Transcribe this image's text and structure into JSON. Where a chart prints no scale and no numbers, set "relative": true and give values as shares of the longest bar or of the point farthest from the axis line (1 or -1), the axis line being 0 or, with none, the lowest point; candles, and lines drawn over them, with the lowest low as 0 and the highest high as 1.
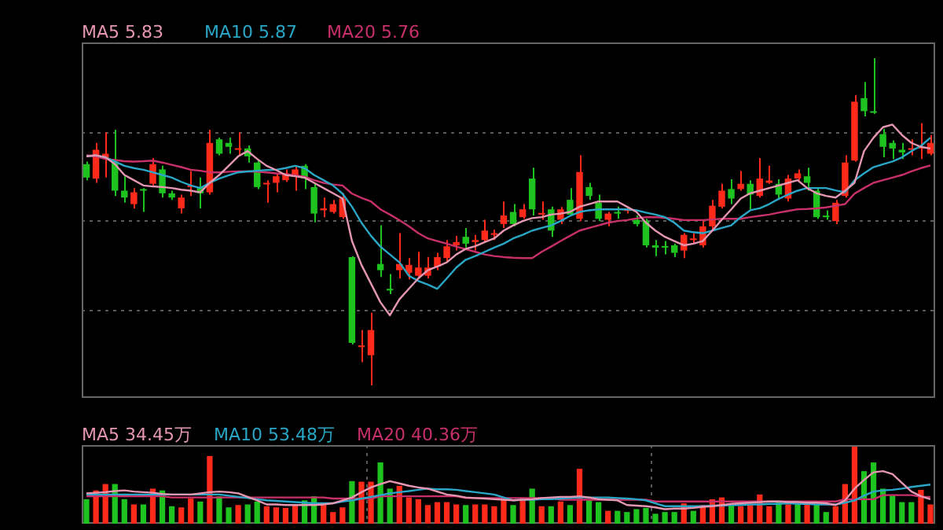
{
  "chart_data": [
    {
      "type": "candlestick",
      "relative": true,
      "grid": "y",
      "legend": "top left",
      "categories": [
        null,
        null,
        null,
        null,
        null,
        null,
        null,
        null,
        null,
        null,
        null,
        null,
        null,
        null,
        null,
        null,
        null,
        null,
        null,
        null,
        null,
        null,
        null,
        null,
        null,
        null,
        null,
        null,
        null,
        null,
        null,
        null,
        null,
        null,
        null,
        null,
        null,
        null,
        null,
        null,
        null,
        null,
        null,
        null,
        null,
        null,
        null,
        null,
        null,
        null,
        null,
        null,
        null,
        null,
        null,
        null,
        null,
        null,
        null,
        null,
        null,
        null,
        null,
        null,
        null,
        null,
        null,
        null,
        null,
        null,
        null,
        null,
        null,
        null,
        null,
        null,
        null,
        null,
        null,
        null,
        null,
        null,
        null,
        null,
        null,
        null,
        null,
        null,
        null,
        null
      ],
      "ohlc": [
        [
          0.676,
          0.684,
          0.627,
          0.635
        ],
        [
          0.632,
          0.741,
          0.619,
          0.72
        ],
        [
          0.692,
          0.773,
          0.635,
          0.708
        ],
        [
          0.684,
          0.781,
          0.579,
          0.595
        ],
        [
          0.595,
          0.639,
          0.558,
          0.574
        ],
        [
          0.554,
          0.603,
          0.541,
          0.59
        ],
        [
          0.598,
          0.603,
          0.53,
          0.595
        ],
        [
          0.616,
          0.695,
          0.611,
          0.676
        ],
        [
          0.66,
          0.671,
          0.574,
          0.587
        ],
        [
          0.587,
          0.595,
          0.567,
          0.574
        ],
        [
          0.541,
          0.583,
          0.525,
          0.574
        ],
        [
          0.606,
          0.655,
          0.579,
          0.611
        ],
        [
          0.606,
          0.635,
          0.541,
          0.587
        ],
        [
          0.59,
          0.781,
          0.583,
          0.741
        ],
        [
          0.752,
          0.757,
          0.703,
          0.708
        ],
        [
          0.741,
          0.757,
          0.708,
          0.729
        ],
        [
          0.72,
          0.773,
          0.7,
          0.724
        ],
        [
          0.724,
          0.733,
          0.681,
          0.7
        ],
        [
          0.681,
          0.687,
          0.6,
          0.606
        ],
        [
          0.614,
          0.627,
          0.558,
          0.619
        ],
        [
          0.619,
          0.648,
          0.59,
          0.639
        ],
        [
          0.627,
          0.66,
          0.622,
          0.648
        ],
        [
          0.639,
          0.671,
          0.595,
          0.66
        ],
        [
          0.671,
          0.676,
          0.6,
          0.632
        ],
        [
          0.606,
          0.616,
          0.498,
          0.525
        ],
        [
          0.535,
          0.574,
          0.514,
          0.541
        ],
        [
          0.53,
          0.567,
          0.525,
          0.554
        ],
        [
          0.514,
          0.587,
          0.509,
          0.571
        ],
        [
          0.392,
          0.395,
          0.125,
          0.13
        ],
        [
          0.117,
          0.169,
          0.071,
          0.122
        ],
        [
          0.092,
          0.222,
          0,
          0.169
        ],
        [
          0.371,
          0.489,
          0.331,
          0.352
        ],
        [
          0.295,
          0.34,
          0.279,
          0.29
        ],
        [
          0.352,
          0.465,
          0.327,
          0.371
        ],
        [
          0.344,
          0.389,
          0.324,
          0.368
        ],
        [
          0.335,
          0.408,
          0.331,
          0.36
        ],
        [
          0.335,
          0.392,
          0.327,
          0.36
        ],
        [
          0.363,
          0.405,
          0.352,
          0.392
        ],
        [
          0.389,
          0.444,
          0.379,
          0.425
        ],
        [
          0.428,
          0.457,
          0.412,
          0.438
        ],
        [
          0.454,
          0.481,
          0.421,
          0.433
        ],
        [
          0.438,
          0.46,
          0.412,
          0.444
        ],
        [
          0.444,
          0.506,
          0.438,
          0.473
        ],
        [
          0.46,
          0.476,
          0.444,
          0.465
        ],
        [
          0.493,
          0.562,
          0.481,
          0.519
        ],
        [
          0.53,
          0.554,
          0.486,
          0.493
        ],
        [
          0.514,
          0.554,
          0.509,
          0.538
        ],
        [
          0.632,
          0.665,
          0.519,
          0.538
        ],
        [
          0.522,
          0.562,
          0.506,
          0.525
        ],
        [
          0.538,
          0.546,
          0.454,
          0.473
        ],
        [
          0.506,
          0.545,
          0.493,
          0.538
        ],
        [
          0.567,
          0.603,
          0.519,
          0.522
        ],
        [
          0.509,
          0.703,
          0.502,
          0.652
        ],
        [
          0.606,
          0.619,
          0.567,
          0.579
        ],
        [
          0.558,
          0.583,
          0.502,
          0.509
        ],
        [
          0.506,
          0.53,
          0.486,
          0.525
        ],
        [
          0.53,
          0.546,
          0.509,
          0.525
        ],
        [
          0.533,
          0.546,
          0.525,
          0.538
        ],
        [
          0.506,
          0.519,
          0.486,
          0.493
        ],
        [
          0.502,
          0.509,
          0.421,
          0.428
        ],
        [
          0.428,
          0.444,
          0.395,
          0.421
        ],
        [
          0.425,
          0.441,
          0.4,
          0.421
        ],
        [
          0.428,
          0.433,
          0.392,
          0.405
        ],
        [
          0.412,
          0.465,
          0.389,
          0.46
        ],
        [
          0.444,
          0.465,
          0.433,
          0.449
        ],
        [
          0.428,
          0.502,
          0.421,
          0.486
        ],
        [
          0.486,
          0.567,
          0.476,
          0.549
        ],
        [
          0.546,
          0.616,
          0.541,
          0.595
        ],
        [
          0.6,
          0.63,
          0.554,
          0.571
        ],
        [
          0.6,
          0.655,
          0.595,
          0.616
        ],
        [
          0.616,
          0.627,
          0.538,
          0.583
        ],
        [
          0.579,
          0.695,
          0.574,
          0.632
        ],
        [
          0.619,
          0.671,
          0.616,
          0.626
        ],
        [
          0.616,
          0.63,
          0.567,
          0.583
        ],
        [
          0.571,
          0.643,
          0.562,
          0.632
        ],
        [
          0.632,
          0.66,
          0.626,
          0.648
        ],
        [
          0.639,
          0.665,
          0.595,
          0.619
        ],
        [
          0.595,
          0.603,
          0.509,
          0.514
        ],
        [
          0.519,
          0.535,
          0.506,
          0.514
        ],
        [
          0.502,
          0.567,
          0.493,
          0.558
        ],
        [
          0.579,
          0.703,
          0.574,
          0.681
        ],
        [
          0.687,
          0.887,
          0.684,
          0.867
        ],
        [
          0.878,
          0.927,
          0.822,
          0.838
        ],
        [
          0.838,
          1,
          0.83,
          0.833
        ],
        [
          0.768,
          0.784,
          0.697,
          0.729
        ],
        [
          0.741,
          0.749,
          0.692,
          0.724
        ],
        [
          0.72,
          0.741,
          0.692,
          0.712
        ],
        [
          0.72,
          0.752,
          0.703,
          0.724
        ],
        [
          0.724,
          0.801,
          0.692,
          0.729
        ],
        [
          0.708,
          0.765,
          0.703,
          0.741
        ]
      ],
      "colors": [
        "#1fc31f",
        "#ff2a1a",
        "#ff2a1a",
        "#1fc31f",
        "#1fc31f",
        "#ff2a1a",
        "#1fc31f",
        "#ff2a1a",
        "#1fc31f",
        "#1fc31f",
        "#ff2a1a",
        "#ff2a1a",
        "#1fc31f",
        "#ff2a1a",
        "#1fc31f",
        "#1fc31f",
        "#ff2a1a",
        "#1fc31f",
        "#1fc31f",
        "#ff2a1a",
        "#ff2a1a",
        "#ff2a1a",
        "#ff2a1a",
        "#1fc31f",
        "#1fc31f",
        "#ff2a1a",
        "#ff2a1a",
        "#ff2a1a",
        "#1fc31f",
        "#ff2a1a",
        "#ff2a1a",
        "#1fc31f",
        "#1fc31f",
        "#ff2a1a",
        "#ff2a1a",
        "#ff2a1a",
        "#ff2a1a",
        "#ff2a1a",
        "#ff2a1a",
        "#ff2a1a",
        "#1fc31f",
        "#ff2a1a",
        "#ff2a1a",
        "#ff2a1a",
        "#ff2a1a",
        "#1fc31f",
        "#ff2a1a",
        "#1fc31f",
        "#ff2a1a",
        "#1fc31f",
        "#ff2a1a",
        "#1fc31f",
        "#ff2a1a",
        "#1fc31f",
        "#1fc31f",
        "#ff2a1a",
        "#1fc31f",
        "#ff2a1a",
        "#1fc31f",
        "#1fc31f",
        "#1fc31f",
        "#1fc31f",
        "#1fc31f",
        "#ff2a1a",
        "#ff2a1a",
        "#ff2a1a",
        "#ff2a1a",
        "#ff2a1a",
        "#1fc31f",
        "#ff2a1a",
        "#1fc31f",
        "#ff2a1a",
        "#ff2a1a",
        "#1fc31f",
        "#ff2a1a",
        "#ff2a1a",
        "#1fc31f",
        "#1fc31f",
        "#1fc31f",
        "#ff2a1a",
        "#ff2a1a",
        "#ff2a1a",
        "#1fc31f",
        "#1fc31f",
        "#1fc31f",
        "#1fc31f",
        "#1fc31f",
        "#ff2a1a",
        "#ff2a1a",
        "#ff2a1a"
      ],
      "series": [
        {
          "type": "line",
          "name": "MA5 5.83",
          "color": "#e597b2",
          "values": [
            0.7,
            0.703,
            0.697,
            0.676,
            0.643,
            0.627,
            0.611,
            0.608,
            0.606,
            0.603,
            0.598,
            0.595,
            0.59,
            0.619,
            0.643,
            0.671,
            0.7,
            0.716,
            0.692,
            0.671,
            0.658,
            0.643,
            0.639,
            0.635,
            0.619,
            0.603,
            0.587,
            0.571,
            0.441,
            0.368,
            0.311,
            0.254,
            0.214,
            0.263,
            0.295,
            0.327,
            0.352,
            0.363,
            0.376,
            0.4,
            0.417,
            0.425,
            0.438,
            0.449,
            0.473,
            0.489,
            0.502,
            0.511,
            0.514,
            0.522,
            0.525,
            0.53,
            0.546,
            0.554,
            0.562,
            0.562,
            0.562,
            0.546,
            0.53,
            0.497,
            0.473,
            0.454,
            0.441,
            0.428,
            0.433,
            0.441,
            0.473,
            0.506,
            0.538,
            0.571,
            0.587,
            0.595,
            0.603,
            0.611,
            0.619,
            0.627,
            0.603,
            0.587,
            0.579,
            0.574,
            0.595,
            0.619,
            0.716,
            0.757,
            0.789,
            0.797,
            0.765,
            0.741,
            0.729,
            0.724
          ]
        },
        {
          "type": "line",
          "name": "MA10 5.87",
          "color": "#2aa6c6",
          "values": [
            0.7,
            0.703,
            0.697,
            0.684,
            0.671,
            0.664,
            0.659,
            0.651,
            0.643,
            0.635,
            0.622,
            0.611,
            0.603,
            0.619,
            0.632,
            0.642,
            0.651,
            0.654,
            0.656,
            0.658,
            0.659,
            0.664,
            0.671,
            0.664,
            0.643,
            0.627,
            0.611,
            0.586,
            0.546,
            0.497,
            0.457,
            0.424,
            0.4,
            0.376,
            0.335,
            0.319,
            0.308,
            0.295,
            0.327,
            0.36,
            0.384,
            0.395,
            0.408,
            0.421,
            0.433,
            0.449,
            0.46,
            0.473,
            0.481,
            0.489,
            0.502,
            0.518,
            0.53,
            0.535,
            0.538,
            0.538,
            0.538,
            0.538,
            0.535,
            0.528,
            0.522,
            0.514,
            0.497,
            0.473,
            0.468,
            0.465,
            0.473,
            0.481,
            0.489,
            0.514,
            0.535,
            0.541,
            0.554,
            0.57,
            0.583,
            0.595,
            0.603,
            0.603,
            0.603,
            0.596,
            0.59,
            0.627,
            0.648,
            0.667,
            0.676,
            0.684,
            0.697,
            0.716,
            0.732,
            0.757
          ]
        },
        {
          "type": "line",
          "name": "MA20 5.76",
          "color": "#c8306a",
          "values": [
            0.703,
            0.7,
            0.692,
            0.689,
            0.685,
            0.684,
            0.685,
            0.687,
            0.681,
            0.674,
            0.667,
            0.659,
            0.656,
            0.651,
            0.651,
            0.653,
            0.654,
            0.654,
            0.653,
            0.651,
            0.648,
            0.645,
            0.642,
            0.638,
            0.627,
            0.619,
            0.614,
            0.611,
            0.586,
            0.573,
            0.562,
            0.538,
            0.522,
            0.505,
            0.486,
            0.465,
            0.449,
            0.441,
            0.433,
            0.424,
            0.416,
            0.408,
            0.4,
            0.395,
            0.392,
            0.39,
            0.389,
            0.389,
            0.408,
            0.424,
            0.441,
            0.457,
            0.473,
            0.481,
            0.489,
            0.497,
            0.502,
            0.505,
            0.51,
            0.514,
            0.514,
            0.512,
            0.509,
            0.505,
            0.505,
            0.505,
            0.507,
            0.509,
            0.509,
            0.509,
            0.514,
            0.518,
            0.522,
            0.528,
            0.533,
            0.538,
            0.539,
            0.541,
            0.544,
            0.549,
            0.554,
            0.586,
            0.603,
            0.619,
            0.627,
            0.635,
            0.643,
            0.654,
            0.664,
            0.672
          ]
        }
      ]
    },
    {
      "type": "bar",
      "relative": true,
      "grid": "x",
      "legend": "top left",
      "categories": [
        null,
        null,
        null,
        null,
        null,
        null,
        null,
        null,
        null,
        null,
        null,
        null,
        null,
        null,
        null,
        null,
        null,
        null,
        null,
        null,
        null,
        null,
        null,
        null,
        null,
        null,
        null,
        null,
        null,
        null,
        null,
        null,
        null,
        null,
        null,
        null,
        null,
        null,
        null,
        null,
        null,
        null,
        null,
        null,
        null,
        null,
        null,
        null,
        null,
        null,
        null,
        null,
        null,
        null,
        null,
        null,
        null,
        null,
        null,
        null,
        null,
        null,
        null,
        null,
        null,
        null,
        null,
        null,
        null,
        null,
        null,
        null,
        null,
        null,
        null,
        null,
        null,
        null,
        null,
        null,
        null,
        null,
        null,
        null,
        null,
        null,
        null,
        null,
        null,
        null
      ],
      "series": [
        {
          "values": [
            0.318,
            0.432,
            0.515,
            0.515,
            0.318,
            0.25,
            0.25,
            0.455,
            0.432,
            0.227,
            0.212,
            0.326,
            0.288,
            0.879,
            0.356,
            0.212,
            0.242,
            0.25,
            0.288,
            0.227,
            0.212,
            0.205,
            0.242,
            0.303,
            0.356,
            0.242,
            0.152,
            0.212,
            0.553,
            0.545,
            0.545,
            0.795,
            0.455,
            0.492,
            0.341,
            0.318,
            0.242,
            0.28,
            0.28,
            0.25,
            0.242,
            0.25,
            0.25,
            0.227,
            0.341,
            0.242,
            0.341,
            0.455,
            0.227,
            0.227,
            0.288,
            0.242,
            0.712,
            0.303,
            0.28,
            0.167,
            0.167,
            0.152,
            0.189,
            0.205,
            0.129,
            0.152,
            0.152,
            0.265,
            0.167,
            0.242,
            0.318,
            0.341,
            0.242,
            0.227,
            0.242,
            0.379,
            0.227,
            0.28,
            0.25,
            0.25,
            0.265,
            0.25,
            0.152,
            0.227,
            0.515,
            1,
            0.682,
            0.795,
            0.455,
            0.364,
            0.28,
            0.28,
            0.439,
            0.25
          ],
          "colors": [
            "#1fc31f",
            "#ff2a1a",
            "#ff2a1a",
            "#1fc31f",
            "#1fc31f",
            "#ff2a1a",
            "#1fc31f",
            "#ff2a1a",
            "#1fc31f",
            "#1fc31f",
            "#ff2a1a",
            "#ff2a1a",
            "#1fc31f",
            "#ff2a1a",
            "#1fc31f",
            "#1fc31f",
            "#ff2a1a",
            "#1fc31f",
            "#1fc31f",
            "#ff2a1a",
            "#ff2a1a",
            "#ff2a1a",
            "#ff2a1a",
            "#1fc31f",
            "#1fc31f",
            "#ff2a1a",
            "#ff2a1a",
            "#ff2a1a",
            "#1fc31f",
            "#ff2a1a",
            "#ff2a1a",
            "#1fc31f",
            "#1fc31f",
            "#ff2a1a",
            "#ff2a1a",
            "#ff2a1a",
            "#ff2a1a",
            "#ff2a1a",
            "#ff2a1a",
            "#ff2a1a",
            "#1fc31f",
            "#ff2a1a",
            "#ff2a1a",
            "#ff2a1a",
            "#ff2a1a",
            "#1fc31f",
            "#ff2a1a",
            "#1fc31f",
            "#ff2a1a",
            "#1fc31f",
            "#ff2a1a",
            "#1fc31f",
            "#ff2a1a",
            "#1fc31f",
            "#1fc31f",
            "#ff2a1a",
            "#1fc31f",
            "#1fc31f",
            "#1fc31f",
            "#1fc31f",
            "#1fc31f",
            "#1fc31f",
            "#1fc31f",
            "#ff2a1a",
            "#1fc31f",
            "#ff2a1a",
            "#ff2a1a",
            "#ff2a1a",
            "#1fc31f",
            "#ff2a1a",
            "#ff2a1a",
            "#ff2a1a",
            "#ff2a1a",
            "#1fc31f",
            "#ff2a1a",
            "#1fc31f",
            "#ff2a1a",
            "#1fc31f",
            "#1fc31f",
            "#ff2a1a",
            "#ff2a1a",
            "#ff2a1a",
            "#1fc31f",
            "#1fc31f",
            "#1fc31f",
            "#1fc31f",
            "#1fc31f",
            "#1fc31f",
            "#ff2a1a",
            "#ff2a1a"
          ]
        },
        {
          "type": "line",
          "name": "MA5 34.45万",
          "color": "#e597b2",
          "values": [
            0.394,
            0.402,
            0.409,
            0.424,
            0.432,
            0.417,
            0.409,
            0.402,
            0.386,
            0.379,
            0.379,
            0.379,
            0.394,
            0.409,
            0.417,
            0.409,
            0.394,
            0.348,
            0.303,
            0.25,
            0.25,
            0.242,
            0.242,
            0.242,
            0.242,
            0.25,
            0.265,
            0.303,
            0.341,
            0.409,
            0.47,
            0.515,
            0.553,
            0.523,
            0.492,
            0.47,
            0.455,
            0.417,
            0.379,
            0.364,
            0.341,
            0.333,
            0.326,
            0.318,
            0.311,
            0.303,
            0.311,
            0.318,
            0.333,
            0.341,
            0.348,
            0.348,
            0.356,
            0.341,
            0.318,
            0.311,
            0.303,
            0.242,
            0.235,
            0.227,
            0.212,
            0.189,
            0.197,
            0.197,
            0.205,
            0.22,
            0.227,
            0.242,
            0.258,
            0.265,
            0.273,
            0.28,
            0.288,
            0.288,
            0.28,
            0.28,
            0.273,
            0.273,
            0.265,
            0.242,
            0.303,
            0.455,
            0.568,
            0.667,
            0.682,
            0.644,
            0.53,
            0.417,
            0.356,
            0.318
          ]
        },
        {
          "type": "line",
          "name": "MA10 53.48万",
          "color": "#2aa6c6",
          "values": [
            0.379,
            0.379,
            0.379,
            0.379,
            0.379,
            0.379,
            0.379,
            0.379,
            0.379,
            0.379,
            0.379,
            0.379,
            0.379,
            0.379,
            0.379,
            0.364,
            0.348,
            0.333,
            0.318,
            0.303,
            0.296,
            0.288,
            0.28,
            0.273,
            0.265,
            0.265,
            0.265,
            0.288,
            0.303,
            0.326,
            0.348,
            0.371,
            0.394,
            0.409,
            0.424,
            0.44,
            0.455,
            0.447,
            0.447,
            0.44,
            0.424,
            0.409,
            0.394,
            0.379,
            0.341,
            0.303,
            0.311,
            0.311,
            0.318,
            0.318,
            0.326,
            0.333,
            0.341,
            0.341,
            0.341,
            0.341,
            0.333,
            0.326,
            0.318,
            0.303,
            0.265,
            0.227,
            0.227,
            0.227,
            0.227,
            0.227,
            0.235,
            0.235,
            0.242,
            0.242,
            0.25,
            0.25,
            0.258,
            0.258,
            0.265,
            0.258,
            0.258,
            0.25,
            0.25,
            0.25,
            0.273,
            0.303,
            0.364,
            0.417,
            0.432,
            0.44,
            0.455,
            0.477,
            0.492,
            0.508
          ]
        },
        {
          "type": "line",
          "name": "MA20 40.36万",
          "color": "#c8306a",
          "values": [
            0.356,
            0.356,
            0.356,
            0.356,
            0.356,
            0.356,
            0.356,
            0.356,
            0.356,
            0.341,
            0.341,
            0.341,
            0.341,
            0.341,
            0.341,
            0.341,
            0.341,
            0.341,
            0.341,
            0.341,
            0.341,
            0.341,
            0.341,
            0.341,
            0.341,
            0.341,
            0.326,
            0.326,
            0.326,
            0.326,
            0.326,
            0.356,
            0.356,
            0.356,
            0.356,
            0.356,
            0.356,
            0.356,
            0.356,
            0.356,
            0.333,
            0.333,
            0.333,
            0.333,
            0.333,
            0.333,
            0.333,
            0.333,
            0.333,
            0.333,
            0.311,
            0.311,
            0.311,
            0.311,
            0.311,
            0.311,
            0.311,
            0.311,
            0.311,
            0.311,
            0.288,
            0.288,
            0.288,
            0.288,
            0.288,
            0.288,
            0.288,
            0.288,
            0.288,
            0.288,
            0.288,
            0.288,
            0.288,
            0.288,
            0.288,
            0.288,
            0.288,
            0.288,
            0.288,
            0.288,
            0.318,
            0.318,
            0.318,
            0.318,
            0.371,
            0.371,
            0.371,
            0.371,
            0.348,
            0.348
          ]
        }
      ]
    }
  ]
}
